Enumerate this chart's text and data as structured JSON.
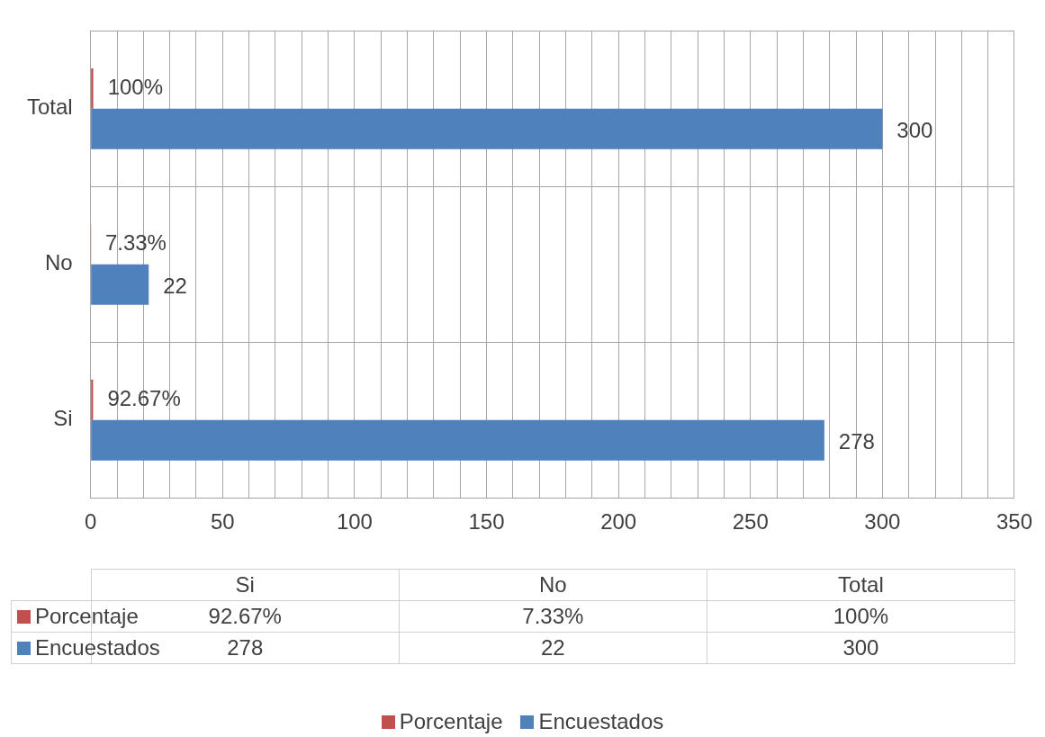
{
  "chart_data": {
    "type": "bar",
    "orientation": "horizontal",
    "categories": [
      "Total",
      "No",
      "Si"
    ],
    "series": [
      {
        "name": "Porcentaje",
        "color": "#c0504d",
        "values": [
          1,
          0.0733,
          0.9267
        ],
        "value_labels": [
          "100%",
          "7.33%",
          "92.67%"
        ]
      },
      {
        "name": "Encuestados",
        "color": "#4f81bd",
        "values": [
          300,
          22,
          278
        ],
        "value_labels": [
          "300",
          "22",
          "278"
        ]
      }
    ],
    "xlim": [
      0,
      350
    ],
    "xticks": [
      0,
      {
        "value": 10,
        "label": null
      },
      {
        "value": 20,
        "label": null
      },
      {
        "value": 30,
        "label": null
      },
      {
        "value": 40,
        "label": null
      },
      50,
      {
        "value": 60,
        "label": null
      },
      {
        "value": 70,
        "label": null
      },
      {
        "value": 80,
        "label": null
      },
      {
        "value": 90,
        "label": null
      },
      100,
      {
        "value": 110,
        "label": null
      },
      {
        "value": 120,
        "label": null
      },
      {
        "value": 130,
        "label": null
      },
      {
        "value": 140,
        "label": null
      },
      150,
      {
        "value": 160,
        "label": null
      },
      {
        "value": 170,
        "label": null
      },
      {
        "value": 180,
        "label": null
      },
      {
        "value": 190,
        "label": null
      },
      200,
      {
        "value": 210,
        "label": null
      },
      {
        "value": 220,
        "label": null
      },
      {
        "value": 230,
        "label": null
      },
      {
        "value": 240,
        "label": null
      },
      250,
      {
        "value": 260,
        "label": null
      },
      {
        "value": 270,
        "label": null
      },
      {
        "value": 280,
        "label": null
      },
      {
        "value": 290,
        "label": null
      },
      300,
      {
        "value": 310,
        "label": null
      },
      {
        "value": 320,
        "label": null
      },
      {
        "value": 330,
        "label": null
      },
      {
        "value": 340,
        "label": null
      },
      350
    ],
    "grid": true,
    "legend": "bottom"
  }
}
